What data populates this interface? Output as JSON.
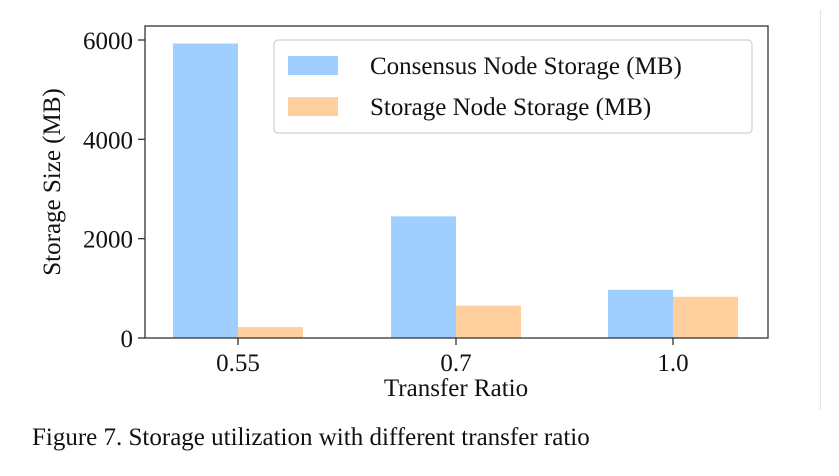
{
  "chart_data": {
    "type": "bar",
    "categories": [
      "0.55",
      "0.7",
      "1.0"
    ],
    "series": [
      {
        "name": "Consensus Node Storage (MB)",
        "values": [
          5930,
          2450,
          970
        ],
        "color": "#a0cfff"
      },
      {
        "name": "Storage Node Storage (MB)",
        "values": [
          220,
          650,
          830
        ],
        "color": "#ffcf9e"
      }
    ],
    "title": "",
    "xlabel": "Transfer Ratio",
    "ylabel": "Storage Size (MB)",
    "ylim": [
      0,
      6000
    ],
    "yticks": [
      "0",
      "2000",
      "4000",
      "6000"
    ],
    "ytick_values": [
      0,
      2000,
      4000,
      6000
    ],
    "grid": false,
    "legend_position": "top-right"
  },
  "caption": "Figure 7.  Storage utilization with different transfer ratio"
}
